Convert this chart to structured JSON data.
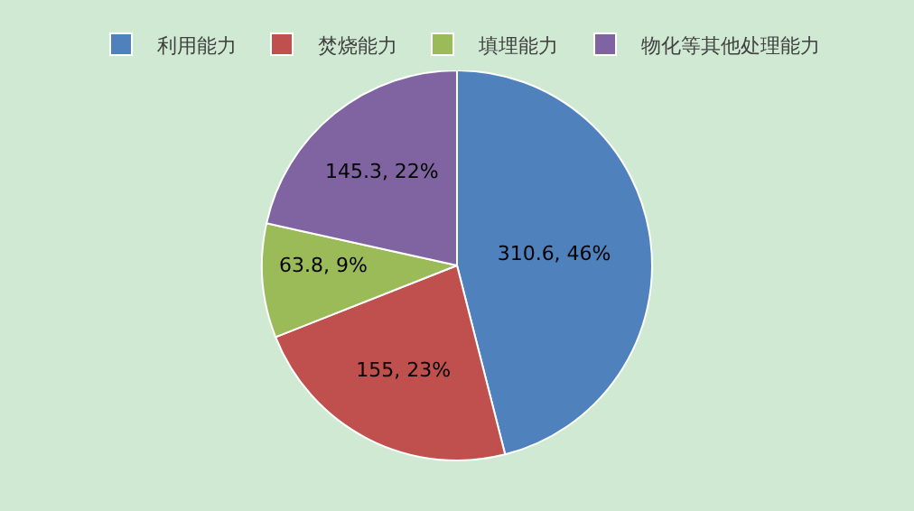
{
  "chart_data": {
    "type": "pie",
    "categories": [
      "利用能力",
      "焚烧能力",
      "填埋能力",
      "物化等其他处理能力"
    ],
    "values": [
      310.6,
      155,
      63.8,
      145.3
    ],
    "colors": [
      "#4f81bd",
      "#c0504d",
      "#9bbb59",
      "#8064a2"
    ],
    "value_labels": [
      "310.6, 46%",
      "155, 23%",
      "63.8, 9%",
      "145.3, 22%"
    ],
    "legend": "top"
  }
}
